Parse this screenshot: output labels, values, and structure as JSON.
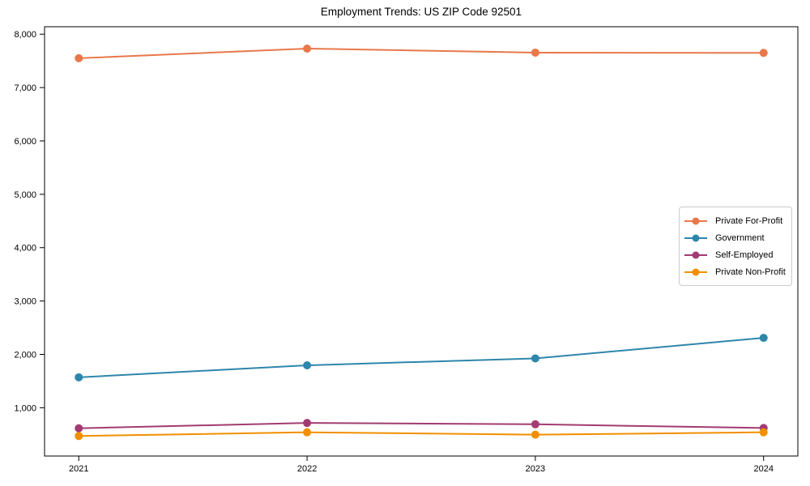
{
  "chart_data": {
    "type": "line",
    "title": "Employment Trends: US ZIP Code 92501",
    "xlabel": "",
    "ylabel": "",
    "x": [
      2021,
      2022,
      2023,
      2024
    ],
    "x_tick_labels": [
      "2021",
      "2022",
      "2023",
      "2024"
    ],
    "series": [
      {
        "name": "Private For-Profit",
        "color": "#E8784A",
        "values": [
          7550,
          7730,
          7655,
          7650
        ]
      },
      {
        "name": "Government",
        "color": "#2E86AB",
        "values": [
          1570,
          1795,
          1925,
          2310
        ]
      },
      {
        "name": "Self-Employed",
        "color": "#A23B72",
        "values": [
          615,
          715,
          690,
          620
        ]
      },
      {
        "name": "Private Non-Profit",
        "color": "#F18F01",
        "values": [
          470,
          540,
          495,
          540
        ]
      }
    ],
    "yticks": [
      1000,
      2000,
      3000,
      4000,
      5000,
      6000,
      7000,
      8000
    ],
    "ytick_labels": [
      "1,000",
      "2,000",
      "3,000",
      "4,000",
      "5,000",
      "6,000",
      "7,000",
      "8,000"
    ],
    "xlim": [
      2020.85,
      2024.15
    ],
    "ylim": [
      95,
      8140
    ],
    "grid": false,
    "legend_position": "center right",
    "marker": "circle",
    "axis_color": "#000000",
    "background_color": "#ffffff"
  }
}
